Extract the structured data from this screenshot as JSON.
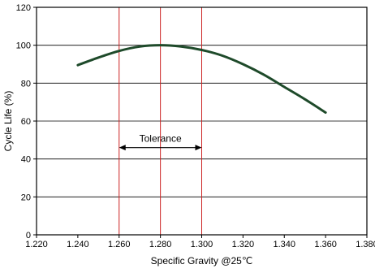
{
  "chart_data": {
    "type": "line",
    "title": "",
    "xlabel": "Specific Gravity @25℃",
    "ylabel": "Cycle Life (%)",
    "xlim": [
      1.22,
      1.38
    ],
    "ylim": [
      0,
      120
    ],
    "x_ticks": [
      1.22,
      1.24,
      1.26,
      1.28,
      1.3,
      1.32,
      1.34,
      1.36,
      1.38
    ],
    "x_tick_labels": [
      "1.220",
      "1.240",
      "1.260",
      "1.280",
      "1.300",
      "1.320",
      "1.340",
      "1.360",
      "1.380"
    ],
    "y_ticks": [
      0,
      20,
      40,
      60,
      80,
      100,
      120
    ],
    "y_tick_labels": [
      "0",
      "20",
      "40",
      "60",
      "80",
      "100",
      "120"
    ],
    "grid": "horizontal",
    "legend": "none",
    "series": [
      {
        "color": "#1e4a2a",
        "x": [
          1.24,
          1.25,
          1.26,
          1.27,
          1.28,
          1.29,
          1.3,
          1.31,
          1.32,
          1.33,
          1.34,
          1.35,
          1.36
        ],
        "y": [
          89.5,
          93.5,
          97,
          99.3,
          100,
          99.3,
          97.5,
          94.5,
          90,
          84.5,
          78,
          71.5,
          64.5
        ]
      }
    ],
    "reference_lines": {
      "color": "#cc2222",
      "x": [
        1.26,
        1.28,
        1.3
      ]
    },
    "annotation": {
      "text": "Tolerance",
      "x_start": 1.26,
      "x_end": 1.3,
      "y": 46
    }
  }
}
